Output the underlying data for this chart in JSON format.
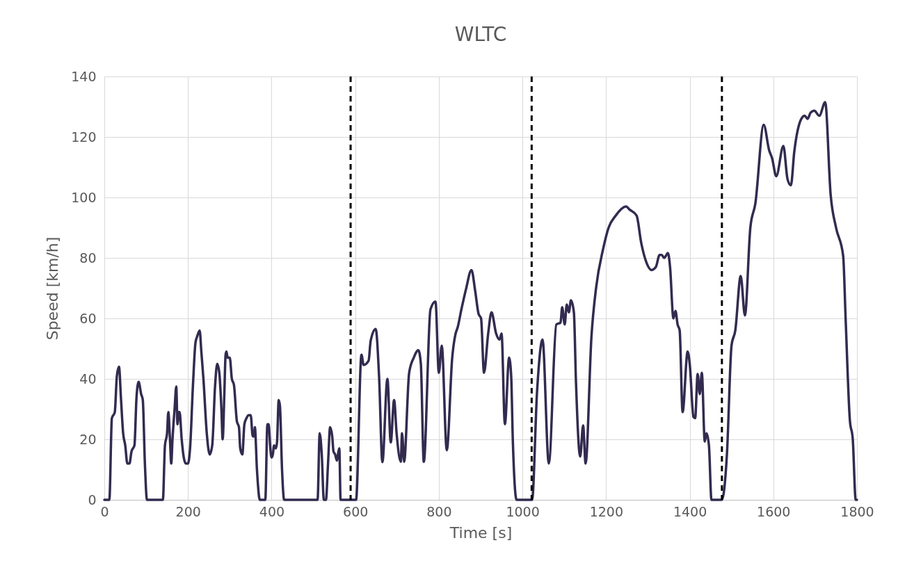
{
  "chart_data": {
    "type": "line",
    "title": "WLTC",
    "xlabel": "Time [s]",
    "ylabel": "Speed [km/h]",
    "xlim": [
      0,
      1800
    ],
    "xticks": [
      0,
      200,
      400,
      600,
      800,
      1000,
      1200,
      1400,
      1600,
      1800
    ],
    "ylim": [
      0,
      140
    ],
    "yticks": [
      0,
      20,
      40,
      60,
      80,
      100,
      120,
      140
    ],
    "grid": true,
    "marker": "none",
    "line_style": "solid",
    "ref_lines": [
      {
        "axis": "x",
        "value": 589,
        "color": "#000000",
        "line_style": "dashed"
      },
      {
        "axis": "x",
        "value": 1022,
        "color": "#000000",
        "line_style": "dashed"
      },
      {
        "axis": "x",
        "value": 1477,
        "color": "#000000",
        "line_style": "dashed"
      }
    ],
    "series": [
      {
        "color": "#332b4f",
        "x": [
          0,
          12,
          18,
          25,
          30,
          35,
          40,
          45,
          50,
          55,
          60,
          65,
          72,
          77,
          82,
          88,
          92,
          97,
          102,
          140,
          145,
          150,
          153,
          157,
          160,
          163,
          168,
          172,
          175,
          178,
          180,
          185,
          190,
          195,
          200,
          205,
          212,
          218,
          222,
          228,
          232,
          237,
          245,
          252,
          258,
          265,
          270,
          275,
          280,
          283,
          287,
          290,
          292,
          295,
          300,
          305,
          310,
          317,
          322,
          325,
          330,
          335,
          340,
          345,
          350,
          355,
          358,
          360,
          365,
          372,
          385,
          390,
          393,
          397,
          400,
          403,
          406,
          410,
          413,
          417,
          420,
          425,
          430,
          510,
          515,
          520,
          525,
          530,
          535,
          540,
          545,
          548,
          552,
          556,
          560,
          562,
          565,
          589,
          602,
          615,
          620,
          632,
          637,
          649,
          657,
          665,
          677,
          685,
          693,
          699,
          709,
          712,
          717,
          729,
          740,
          751,
          757,
          764,
          780,
          792,
          800,
          807,
          819,
          832,
          840,
          845,
          854,
          865,
          878,
          887,
          895,
          901,
          908,
          918,
          926,
          937,
          945,
          950,
          958,
          968,
          973,
          977,
          986,
          1023,
          1035,
          1048,
          1063,
          1081,
          1091,
          1095,
          1101,
          1106,
          1111,
          1116,
          1123,
          1128,
          1138,
          1145,
          1151,
          1165,
          1176,
          1193,
          1206,
          1223,
          1248,
          1256,
          1273,
          1284,
          1294,
          1309,
          1319,
          1328,
          1333,
          1339,
          1348,
          1353,
          1361,
          1366,
          1371,
          1376,
          1383,
          1395,
          1400,
          1409,
          1413,
          1419,
          1424,
          1429,
          1436,
          1440,
          1446,
          1452,
          1477,
          1489,
          1500,
          1509,
          1522,
          1532,
          1545,
          1557,
          1577,
          1590,
          1597,
          1607,
          1624,
          1634,
          1642,
          1650,
          1667,
          1675,
          1682,
          1689,
          1698,
          1710,
          1724,
          1737,
          1750,
          1767,
          1773,
          1783,
          1790,
          1797,
          1800
        ],
        "values": [
          0,
          0,
          27,
          29,
          41,
          44,
          33,
          22,
          18,
          12,
          12,
          16,
          18,
          34,
          39,
          35,
          33,
          12,
          0,
          0,
          18,
          22,
          29,
          20,
          12,
          20,
          30,
          37.5,
          25,
          29,
          29,
          20,
          14,
          12,
          12,
          17,
          38,
          52,
          54,
          56,
          49,
          40,
          22,
          15,
          18,
          38,
          45,
          42,
          30,
          20,
          35,
          48,
          49,
          47,
          47,
          40,
          38,
          26,
          24,
          17,
          15,
          25,
          27,
          28,
          28,
          21,
          21,
          24,
          10,
          0,
          0,
          25,
          25,
          17,
          14,
          15,
          18,
          17,
          19,
          33,
          31,
          10,
          0,
          0,
          22,
          15,
          0,
          0,
          12,
          24,
          21,
          16,
          15,
          13,
          16,
          17,
          0,
          0,
          0,
          48,
          44.6,
          46,
          52.6,
          56.5,
          41,
          12.5,
          40,
          19,
          33,
          22,
          12.6,
          22,
          12.6,
          42,
          47,
          49.5,
          45,
          12.6,
          63,
          65.6,
          42,
          51,
          16.4,
          47,
          54.9,
          57,
          63,
          69.7,
          76,
          69,
          61.5,
          60,
          42,
          55,
          62,
          55,
          53,
          55,
          25,
          47,
          41,
          19.5,
          0,
          0,
          36,
          53,
          12,
          58,
          58.6,
          63.7,
          58,
          64.6,
          62,
          66,
          62,
          39,
          14.3,
          24.6,
          12,
          54,
          70,
          83,
          90,
          94,
          97,
          96,
          94,
          85,
          79.5,
          76,
          77,
          81,
          81,
          80,
          81.6,
          77,
          60,
          62.5,
          58,
          56,
          29,
          49,
          45,
          27.4,
          27,
          41.6,
          35,
          42,
          19.3,
          22,
          18,
          0,
          0,
          15,
          51,
          56,
          74,
          61,
          90,
          98,
          124,
          115.6,
          113,
          107,
          117,
          106,
          104,
          115,
          126,
          127,
          126,
          128,
          128.7,
          127,
          131.5,
          101,
          90,
          80.7,
          59.5,
          26.4,
          20,
          0,
          0
        ]
      }
    ]
  }
}
